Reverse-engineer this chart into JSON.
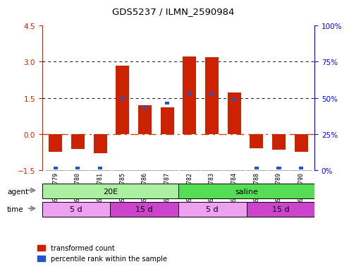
{
  "title": "GDS5237 / ILMN_2590984",
  "samples": [
    "GSM569779",
    "GSM569780",
    "GSM569781",
    "GSM569785",
    "GSM569786",
    "GSM569787",
    "GSM569782",
    "GSM569783",
    "GSM569784",
    "GSM569788",
    "GSM569789",
    "GSM569790"
  ],
  "red_values": [
    -0.72,
    -0.62,
    -0.78,
    2.85,
    1.2,
    1.12,
    3.22,
    3.18,
    1.72,
    -0.58,
    -0.65,
    -0.72
  ],
  "blue_values": [
    -1.45,
    -1.45,
    -1.45,
    1.42,
    1.05,
    1.22,
    1.62,
    1.62,
    1.38,
    -1.45,
    -1.45,
    -1.45
  ],
  "blue_bar_heights": [
    0.12,
    0.12,
    0.12,
    0.12,
    0.12,
    0.12,
    0.12,
    0.12,
    0.12,
    0.12,
    0.12,
    0.12
  ],
  "ylim": [
    -1.5,
    4.5
  ],
  "yticks_left": [
    -1.5,
    0.0,
    1.5,
    3.0,
    4.5
  ],
  "yticks_right_labels": [
    "0%",
    "25%",
    "50%",
    "75%",
    "100%"
  ],
  "yticks_right_pos": [
    -1.5,
    0.0,
    1.5,
    3.0,
    4.5
  ],
  "bar_width": 0.6,
  "red_color": "#cc2200",
  "blue_color": "#2255cc",
  "zero_line_color": "#cc4400",
  "grid_line_color": "#111111",
  "plot_bg": "#ffffff",
  "fig_bg": "#ffffff",
  "agent_20E_color": "#aaf0a0",
  "agent_saline_color": "#55dd55",
  "time_5d_color": "#f0a0f0",
  "time_15d_color": "#cc44cc",
  "legend_red": "transformed count",
  "legend_blue": "percentile rank within the sample"
}
